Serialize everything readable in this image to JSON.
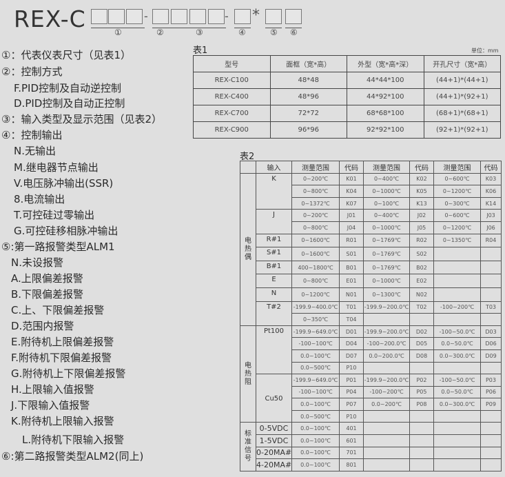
{
  "header": {
    "title": "REX-C",
    "star": "*",
    "labels": [
      "①",
      "②",
      "③",
      "④",
      "⑤",
      "⑥"
    ]
  },
  "legend": [
    "①：代表仪表尺寸（见表1）",
    "②：控制方式",
    "F.PID控制及自动逆控制",
    "D.PID控制及自动正控制",
    "③：输入类型及显示范围（见表2）",
    "④：控制输出",
    "N.无输出",
    "M.继电器节点输出",
    "V.电压脉冲输出(SSR)",
    "8.电流输出",
    "T.可控硅过零输出",
    "G.可控硅移相脉冲输出",
    "⑤:第一路报警类型ALM1",
    "N.未设报警",
    "A.上限偏差报警",
    "B.下限偏差报警",
    "C.上、下限偏差报警",
    "D.范围内报警",
    "E.附待机上限偏差报警",
    "F.附待机下限偏差报警",
    "G.附待机上下限偏差报警",
    "H.上限输入值报警",
    "J.下限输入值报警",
    "K.附待机上限输入报警",
    "L.附待机下限输入报警",
    "⑥:第二路报警类型ALM2(同上)"
  ],
  "table1": {
    "caption": "表1",
    "unit": "单位：mm",
    "headers": [
      "型号",
      "面框（宽*高）",
      "外型（宽*高*深）",
      "开孔尺寸（宽*高）"
    ],
    "rows": [
      [
        "REX-C100",
        "48*48",
        "44*44*100",
        "(44+1)*(44+1)"
      ],
      [
        "REX-C400",
        "48*96",
        "44*92*100",
        "(44+1)*(92+1)"
      ],
      [
        "REX-C700",
        "72*72",
        "68*68*100",
        "(68+1)*(68+1)"
      ],
      [
        "REX-C900",
        "96*96",
        "92*92*100",
        "(92+1)*(92+1)"
      ]
    ]
  },
  "table2": {
    "caption": "表2",
    "headers": [
      "输入",
      "测量范围",
      "代码",
      "测量范围",
      "代码",
      "测量范围",
      "代码"
    ],
    "groups": [
      {
        "name": "电热偶",
        "inputs": [
          {
            "name": "K",
            "rows": [
              [
                "0~200℃",
                "K01",
                "0~400℃",
                "K02",
                "0~600℃",
                "K03"
              ],
              [
                "0~800℃",
                "K04",
                "0~1000℃",
                "K05",
                "0~1200℃",
                "K06"
              ],
              [
                "0~1372℃",
                "K07",
                "0~100℃",
                "K13",
                "0~300℃",
                "K14"
              ]
            ]
          },
          {
            "name": "J",
            "rows": [
              [
                "0~200℃",
                "J01",
                "0~400℃",
                "J02",
                "0~600℃",
                "J03"
              ],
              [
                "0~800℃",
                "J04",
                "0~1000℃",
                "J05",
                "0~1200℃",
                "J06"
              ]
            ]
          },
          {
            "name": "R#1",
            "rows": [
              [
                "0~1600℃",
                "R01",
                "0~1769℃",
                "R02",
                "0~1350℃",
                "R04"
              ]
            ]
          },
          {
            "name": "S#1",
            "rows": [
              [
                "0~1600℃",
                "S01",
                "0~1769℃",
                "S02",
                "",
                ""
              ]
            ]
          },
          {
            "name": "B#1",
            "rows": [
              [
                "400~1800℃",
                "B01",
                "0~1769℃",
                "B02",
                "",
                ""
              ]
            ]
          },
          {
            "name": "E",
            "rows": [
              [
                "0~800℃",
                "E01",
                "0~1000℃",
                "E02",
                "",
                ""
              ]
            ]
          },
          {
            "name": "N",
            "rows": [
              [
                "0~1200℃",
                "N01",
                "0~1300℃",
                "N02",
                "",
                ""
              ]
            ]
          },
          {
            "name": "T#2",
            "rows": [
              [
                "-199.9~400.0℃",
                "T01",
                "-199.9~200.0℃",
                "T02",
                "-100~200℃",
                "T03"
              ],
              [
                "0~350℃",
                "T04",
                "",
                "",
                "",
                ""
              ]
            ]
          }
        ]
      },
      {
        "name": "电热阻",
        "inputs": [
          {
            "name": "Pt100",
            "rows": [
              [
                "-199.9~649.0℃",
                "D01",
                "-199.9~200.0℃",
                "D02",
                "-100~50.0℃",
                "D03"
              ],
              [
                "-100~100℃",
                "D04",
                "-100~200.0℃",
                "D05",
                "0.0~50.0℃",
                "D06"
              ],
              [
                "0.0~100℃",
                "D07",
                "0.0~200.0℃",
                "D08",
                "0.0~300.0℃",
                "D09"
              ],
              [
                "0.0~500℃",
                "P10",
                "",
                "",
                "",
                ""
              ]
            ]
          },
          {
            "name": "Cu50",
            "rows": [
              [
                "-199.9~649.0℃",
                "P01",
                "-199.9~200.0℃",
                "P02",
                "-100~50.0℃",
                "P03"
              ],
              [
                "-100~100℃",
                "P04",
                "-100~200℃",
                "P05",
                "0.0~50.0℃",
                "P06"
              ],
              [
                "0.0~100℃",
                "P07",
                "0.0~200℃",
                "P08",
                "0.0~300.0℃",
                "P09"
              ],
              [
                "0.0~500℃",
                "P10",
                "",
                "",
                "",
                ""
              ]
            ]
          }
        ]
      },
      {
        "name": "标准信号",
        "inputs": [
          {
            "name": "0-5VDC",
            "rows": [
              [
                "0.0~100℃",
                "401",
                "",
                "",
                "",
                ""
              ]
            ]
          },
          {
            "name": "1-5VDC",
            "rows": [
              [
                "0.0~100℃",
                "601",
                "",
                "",
                "",
                ""
              ]
            ]
          },
          {
            "name": "0-20MA#3",
            "rows": [
              [
                "0.0~100℃",
                "701",
                "",
                "",
                "",
                ""
              ]
            ]
          },
          {
            "name": "4-20MA#3",
            "rows": [
              [
                "0.0~100℃",
                "801",
                "",
                "",
                "",
                ""
              ]
            ]
          }
        ]
      }
    ]
  }
}
